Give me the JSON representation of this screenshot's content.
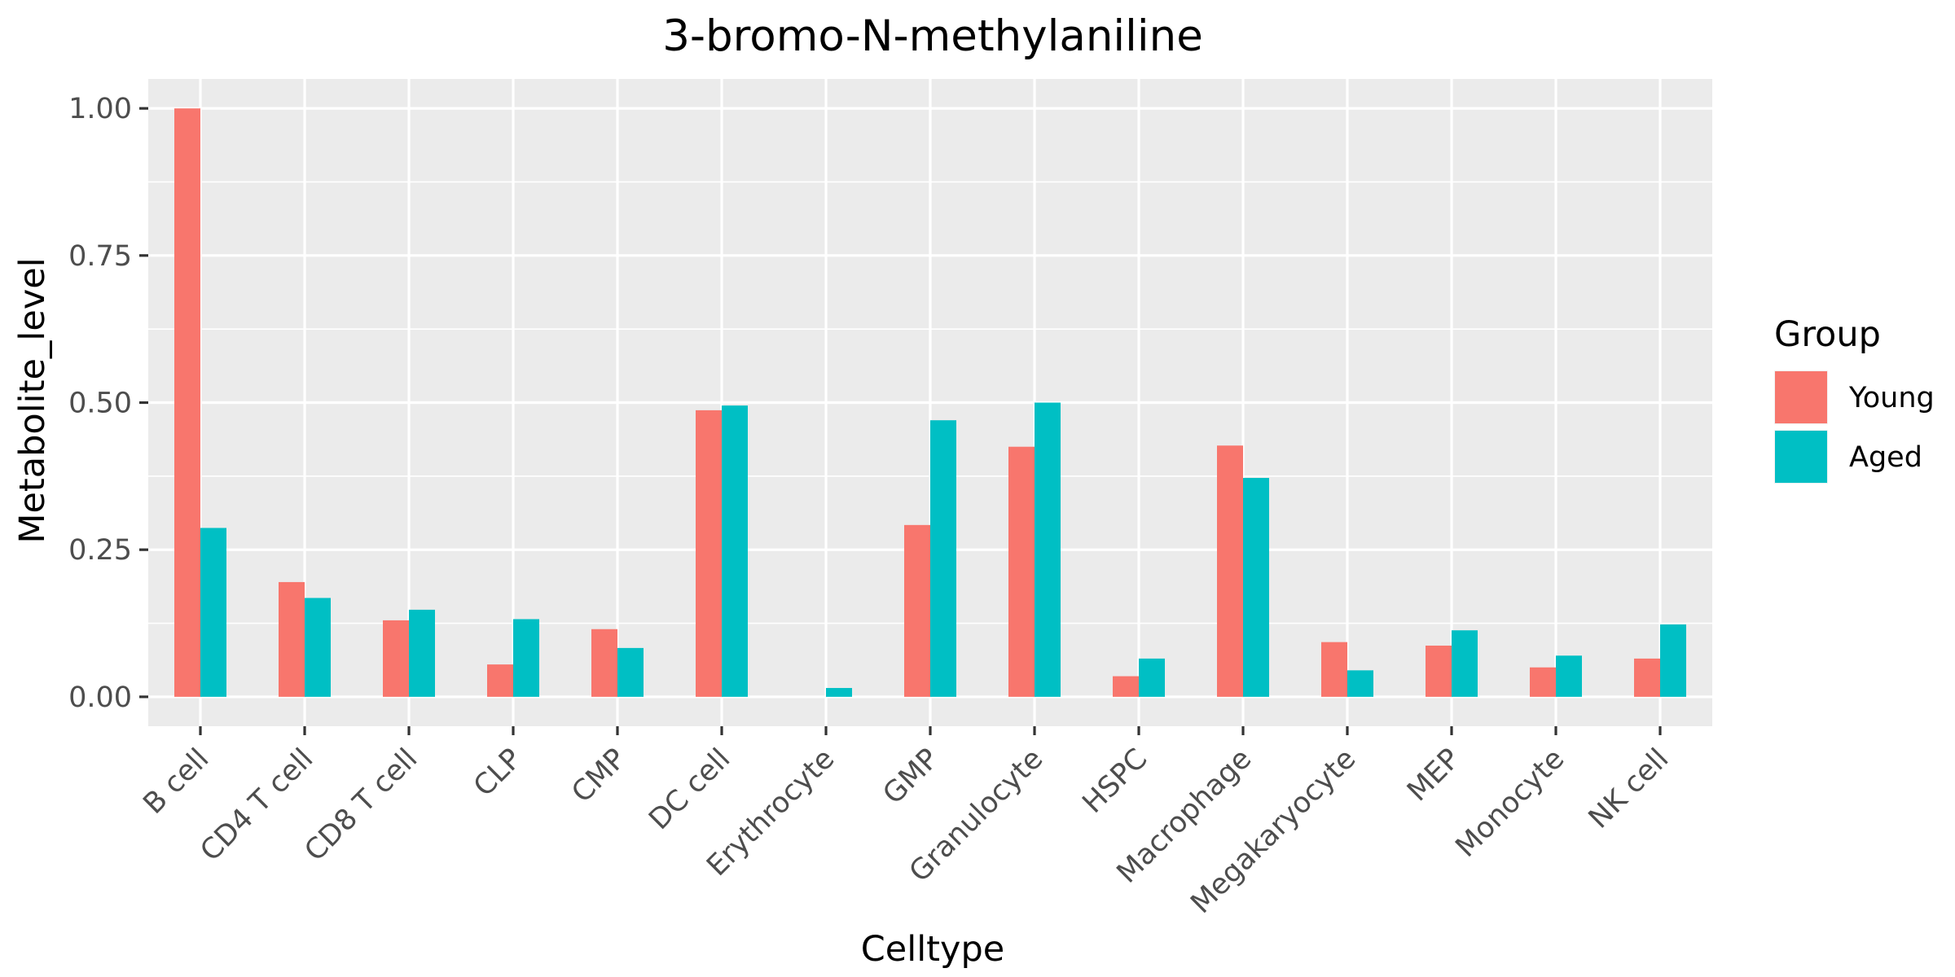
{
  "chart_data": {
    "type": "bar",
    "title": "3-bromo-N-methylaniline",
    "xlabel": "Celltype",
    "ylabel": "Metabolite_level",
    "categories": [
      "B cell",
      "CD4 T cell",
      "CD8 T cell",
      "CLP",
      "CMP",
      "DC cell",
      "Erythrocyte",
      "GMP",
      "Granulocyte",
      "HSPC",
      "Macrophage",
      "Megakaryocyte",
      "MEP",
      "Monocyte",
      "NK cell"
    ],
    "series": [
      {
        "name": "Young",
        "color": "#F8766D",
        "values": [
          1.0,
          0.195,
          0.13,
          0.055,
          0.115,
          0.487,
          0.0,
          0.292,
          0.425,
          0.035,
          0.427,
          0.093,
          0.087,
          0.05,
          0.065
        ]
      },
      {
        "name": "Aged",
        "color": "#00BFC4",
        "values": [
          0.287,
          0.168,
          0.148,
          0.132,
          0.083,
          0.495,
          0.015,
          0.47,
          0.5,
          0.065,
          0.372,
          0.045,
          0.113,
          0.07,
          0.123
        ]
      }
    ],
    "ylim": [
      -0.05,
      1.05
    ],
    "yticks": [
      0.0,
      0.25,
      0.5,
      0.75,
      1.0
    ],
    "ytick_labels": [
      "0.00",
      "0.25",
      "0.50",
      "0.75",
      "1.00"
    ],
    "legend": {
      "title": "Group",
      "position": "right"
    },
    "grid": true,
    "panel_background": "#EBEBEB"
  }
}
